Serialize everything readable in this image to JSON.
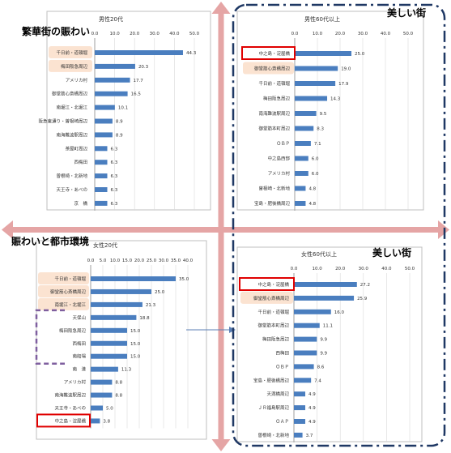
{
  "labels": {
    "top_left": "繁華街の賑わい",
    "bottom_left": "賑わいと都市環境",
    "top_right": "美しい街",
    "bottom_right": "美しい街"
  },
  "chart_data": [
    {
      "type": "bar",
      "title": "男性20代",
      "xlim": [
        0,
        50
      ],
      "ticks": [
        "0.0",
        "10.0",
        "20.0",
        "30.0",
        "40.0",
        "50.0"
      ],
      "categories": [
        "千日前・道頓堀",
        "梅田阪急周辺",
        "アメリカ村",
        "御堂筋心斎橋周辺",
        "南堀江・北堀江",
        "阪急東通り・曽根崎周辺",
        "南海難波駅周辺",
        "茶屋町周辺",
        "西梅田",
        "曽根崎・北新地",
        "天王寺・あべの",
        "京　橋"
      ],
      "values": [
        44.3,
        20.3,
        17.7,
        16.5,
        10.1,
        8.9,
        8.9,
        6.3,
        6.3,
        6.3,
        6.3,
        6.3
      ],
      "value_labels": [
        "44.3",
        "20.3",
        "17.7",
        "16.5",
        "10.1",
        "8.9",
        "8.9",
        "6.3",
        "6.3",
        "6.3",
        "6.3",
        "6.3"
      ],
      "highlight_peach": [
        0,
        1
      ]
    },
    {
      "type": "bar",
      "title": "男性60代以上",
      "xlim": [
        0,
        50
      ],
      "ticks": [
        "0.0",
        "10.0",
        "20.0",
        "30.0",
        "40.0",
        "50.0"
      ],
      "categories": [
        "中之島・淀屋橋",
        "御堂筋心斎橋周辺",
        "千日前・道頓堀",
        "梅田阪急周辺",
        "南海難波駅周辺",
        "御堂筋本町周辺",
        "ＯＢＰ",
        "中之島西部",
        "アメリカ村",
        "曽根崎・北新地",
        "宝島・肥後橋周辺"
      ],
      "values": [
        25.0,
        19.0,
        17.9,
        14.3,
        9.5,
        8.3,
        7.1,
        6.0,
        6.0,
        4.8,
        4.8
      ],
      "value_labels": [
        "25.0",
        "19.0",
        "17.9",
        "14.3",
        "9.5",
        "8.3",
        "7.1",
        "6.0",
        "6.0",
        "4.8",
        "4.8"
      ],
      "highlight_peach": [
        1
      ],
      "highlight_red_box": [
        0
      ]
    },
    {
      "type": "bar",
      "title": "女性20代",
      "xlim": [
        0,
        40
      ],
      "ticks": [
        "0.0",
        "5.0",
        "10.0",
        "15.0",
        "20.0",
        "25.0",
        "30.0",
        "35.0",
        "40.0"
      ],
      "categories": [
        "千日前・道頓堀",
        "御堂筋心斎橋周辺",
        "南堀江・北堀江",
        "天保山",
        "梅田阪急周辺",
        "西梅田",
        "南船場",
        "南　港",
        "アメリカ村",
        "南海難波駅周辺",
        "天王寺・あべの",
        "中之島・淀屋橋"
      ],
      "values": [
        35.0,
        25.0,
        21.3,
        18.8,
        15.0,
        15.0,
        15.0,
        11.3,
        8.8,
        8.8,
        5.0,
        3.8
      ],
      "value_labels": [
        "35.0",
        "25.0",
        "21.3",
        "18.8",
        "15.0",
        "15.0",
        "15.0",
        "11.3",
        "8.8",
        "8.8",
        "5.0",
        "3.8"
      ],
      "highlight_peach": [
        0,
        1,
        2
      ],
      "highlight_red_box": [
        11
      ],
      "highlight_dashed_box": [
        3,
        4,
        5,
        6
      ]
    },
    {
      "type": "bar",
      "title": "女性60代以上",
      "xlim": [
        0,
        50
      ],
      "ticks": [
        "0.0",
        "10.0",
        "20.0",
        "30.0",
        "40.0",
        "50.0"
      ],
      "categories": [
        "中之島・淀屋橋",
        "御堂筋心斎橋周辺",
        "千日前・道頓堀",
        "御堂筋本町周辺",
        "梅田阪急周辺",
        "西梅田",
        "ＯＢＰ",
        "宝島・肥後橋周辺",
        "天満橋周辺",
        "ＪＲ福島駅周辺",
        "ＯＡＰ",
        "曽根崎・北新地"
      ],
      "values": [
        27.2,
        25.9,
        16.0,
        11.1,
        9.9,
        9.9,
        8.6,
        7.4,
        4.9,
        4.9,
        4.9,
        3.7
      ],
      "value_labels": [
        "27.2",
        "25.9",
        "16.0",
        "11.1",
        "9.9",
        "9.9",
        "8.6",
        "7.4",
        "4.9",
        "4.9",
        "4.9",
        "3.7"
      ],
      "highlight_peach": [
        1
      ],
      "highlight_red_box": [
        0
      ]
    }
  ],
  "colors": {
    "bar": "#4a7ebf",
    "peach": "#fbe3d1",
    "red_box": "#e00000",
    "purple_dash": "#7f5f9f",
    "navy_dash": "#1f3864",
    "axis_arrow": "#e5a5a5"
  }
}
